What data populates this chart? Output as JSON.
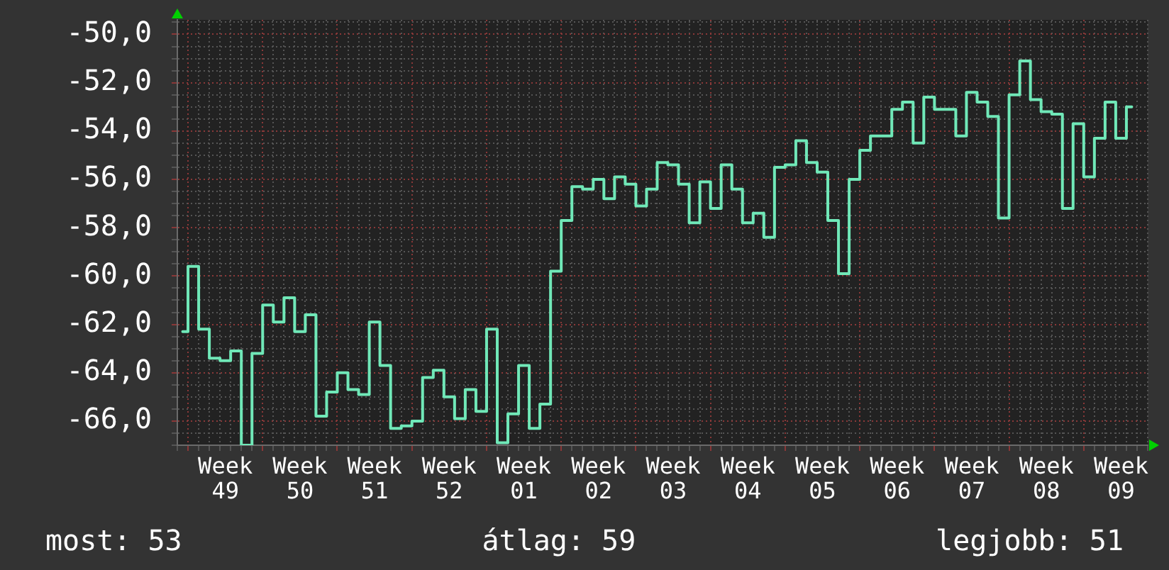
{
  "chart_data": {
    "type": "step",
    "color": "#70e8b8",
    "marker": "none",
    "grid": true,
    "categories": [
      null,
      null,
      null,
      null,
      "Week 49",
      null,
      null,
      null,
      null,
      null,
      null,
      "Week 50",
      null,
      null,
      null,
      null,
      null,
      null,
      "Week 51",
      null,
      null,
      null,
      null,
      null,
      null,
      "Week 52",
      null,
      null,
      null,
      null,
      null,
      null,
      "Week 01",
      null,
      null,
      null,
      null,
      null,
      null,
      "Week 02",
      null,
      null,
      null,
      null,
      null,
      null,
      "Week 03",
      null,
      null,
      null,
      null,
      null,
      null,
      "Week 04",
      null,
      null,
      null,
      null,
      null,
      null,
      "Week 05",
      null,
      null,
      null,
      null,
      null,
      null,
      "Week 06",
      null,
      null,
      null,
      null,
      null,
      null,
      "Week 07",
      null,
      null,
      null,
      null,
      null,
      null,
      "Week 08",
      null,
      null,
      null,
      null,
      null,
      null,
      "Week 09",
      null,
      null
    ],
    "values": [
      -62.3,
      -59.6,
      -62.2,
      -63.4,
      -63.5,
      -63.1,
      -67.0,
      -63.2,
      -61.2,
      -61.9,
      -60.9,
      -62.3,
      -61.6,
      -65.8,
      -64.8,
      -64.0,
      -64.7,
      -64.9,
      -61.9,
      -63.7,
      -66.3,
      -66.2,
      -66.0,
      -64.2,
      -63.9,
      -65.0,
      -65.9,
      -64.7,
      -65.6,
      -62.2,
      -66.9,
      -65.7,
      -63.7,
      -66.3,
      -65.3,
      -59.8,
      -57.7,
      -56.3,
      -56.4,
      -56.0,
      -56.8,
      -55.9,
      -56.2,
      -57.1,
      -56.4,
      -55.3,
      -55.4,
      -56.2,
      -57.8,
      -56.1,
      -57.2,
      -55.4,
      -56.4,
      -57.8,
      -57.4,
      -58.4,
      -55.5,
      -55.4,
      -54.4,
      -55.3,
      -55.7,
      -57.7,
      -59.9,
      -56.0,
      -54.8,
      -54.2,
      -54.2,
      -53.1,
      -52.8,
      -54.5,
      -52.6,
      -53.1,
      -53.1,
      -54.2,
      -52.4,
      -52.8,
      -53.4,
      -57.6,
      -52.5,
      -51.1,
      -52.7,
      -53.2,
      -53.3,
      -57.2,
      -53.7,
      -55.9,
      -54.3,
      -52.8,
      -54.3,
      -53.0,
      null
    ],
    "ylim": [
      -67,
      -49.4
    ],
    "yticks": [
      {
        "value": -67,
        "label": null
      },
      {
        "value": -66.5,
        "label": null
      },
      {
        "value": -66,
        "label": "-66,0"
      },
      {
        "value": -65.5,
        "label": null
      },
      {
        "value": -65,
        "label": null
      },
      {
        "value": -64.5,
        "label": null
      },
      {
        "value": -64,
        "label": "-64,0"
      },
      {
        "value": -63.5,
        "label": null
      },
      {
        "value": -63,
        "label": null
      },
      {
        "value": -62.5,
        "label": null
      },
      {
        "value": -62,
        "label": "-62,0"
      },
      {
        "value": -61.5,
        "label": null
      },
      {
        "value": -61,
        "label": null
      },
      {
        "value": -60.5,
        "label": null
      },
      {
        "value": -60,
        "label": "-60,0"
      },
      {
        "value": -59.5,
        "label": null
      },
      {
        "value": -59,
        "label": null
      },
      {
        "value": -58.5,
        "label": null
      },
      {
        "value": -58,
        "label": "-58,0"
      },
      {
        "value": -57.5,
        "label": null
      },
      {
        "value": -57,
        "label": null
      },
      {
        "value": -56.5,
        "label": null
      },
      {
        "value": -56,
        "label": "-56,0"
      },
      {
        "value": -55.5,
        "label": null
      },
      {
        "value": -55,
        "label": null
      },
      {
        "value": -54.5,
        "label": null
      },
      {
        "value": -54,
        "label": "-54,0"
      },
      {
        "value": -53.5,
        "label": null
      },
      {
        "value": -53,
        "label": null
      },
      {
        "value": -52.5,
        "label": null
      },
      {
        "value": -52,
        "label": "-52,0"
      },
      {
        "value": -51.5,
        "label": null
      },
      {
        "value": -51,
        "label": null
      },
      {
        "value": -50.5,
        "label": null
      },
      {
        "value": -50,
        "label": "-50,0"
      },
      {
        "value": -49.5,
        "label": null
      }
    ],
    "annotations": [
      "most: 53",
      "átlag: 59",
      "legjobb: 51"
    ]
  }
}
